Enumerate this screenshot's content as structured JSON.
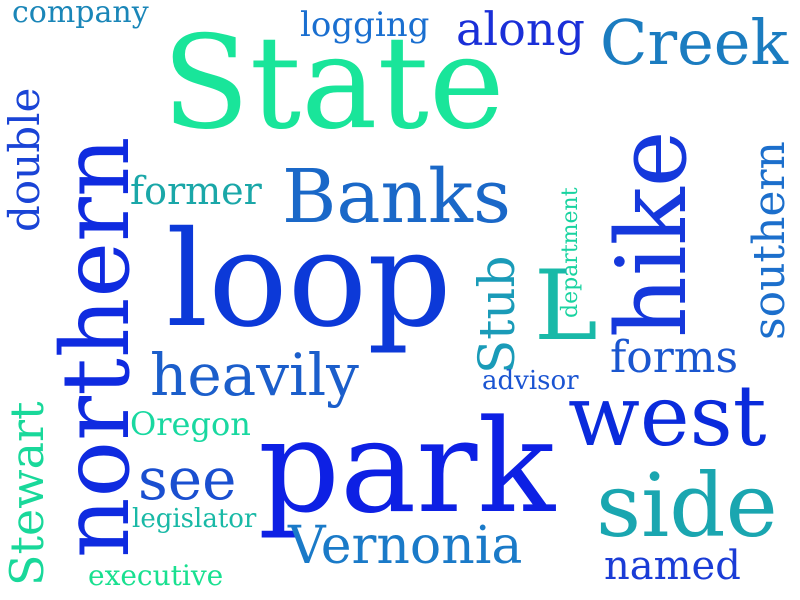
{
  "words": [
    {
      "text": "company",
      "color": "#1a86b8"
    },
    {
      "text": "logging",
      "color": "#1a6fd0"
    },
    {
      "text": "along",
      "color": "#1a2fd8"
    },
    {
      "text": "Creek",
      "color": "#1b7cc0"
    },
    {
      "text": "State",
      "color": "#19e59a"
    },
    {
      "text": "double",
      "color": "#1a44d6"
    },
    {
      "text": "northern",
      "color": "#0f2be0"
    },
    {
      "text": "former",
      "color": "#1aa7a8"
    },
    {
      "text": "Banks",
      "color": "#1a68c8"
    },
    {
      "text": "hike",
      "color": "#1538dc"
    },
    {
      "text": "southern",
      "color": "#1c6fcc"
    },
    {
      "text": "department",
      "color": "#19d3a0"
    },
    {
      "text": "loop",
      "color": "#0c39d8"
    },
    {
      "text": "L",
      "color": "#19b9a8"
    },
    {
      "text": "Stub",
      "color": "#1a9bb8"
    },
    {
      "text": "forms",
      "color": "#1a56cf"
    },
    {
      "text": "heavily",
      "color": "#1b5ecb"
    },
    {
      "text": "advisor",
      "color": "#1a54d2"
    },
    {
      "text": "Stewart",
      "color": "#19d89a"
    },
    {
      "text": "Oregon",
      "color": "#19d8a0"
    },
    {
      "text": "west",
      "color": "#0a2bdc"
    },
    {
      "text": "park",
      "color": "#0d20e4"
    },
    {
      "text": "see",
      "color": "#1a4fd0"
    },
    {
      "text": "legislator",
      "color": "#19b9a6"
    },
    {
      "text": "side",
      "color": "#1aa6b0"
    },
    {
      "text": "Vernonia",
      "color": "#1a7ac8"
    },
    {
      "text": "named",
      "color": "#1a3cd6"
    },
    {
      "text": "executive",
      "color": "#19e090"
    }
  ]
}
